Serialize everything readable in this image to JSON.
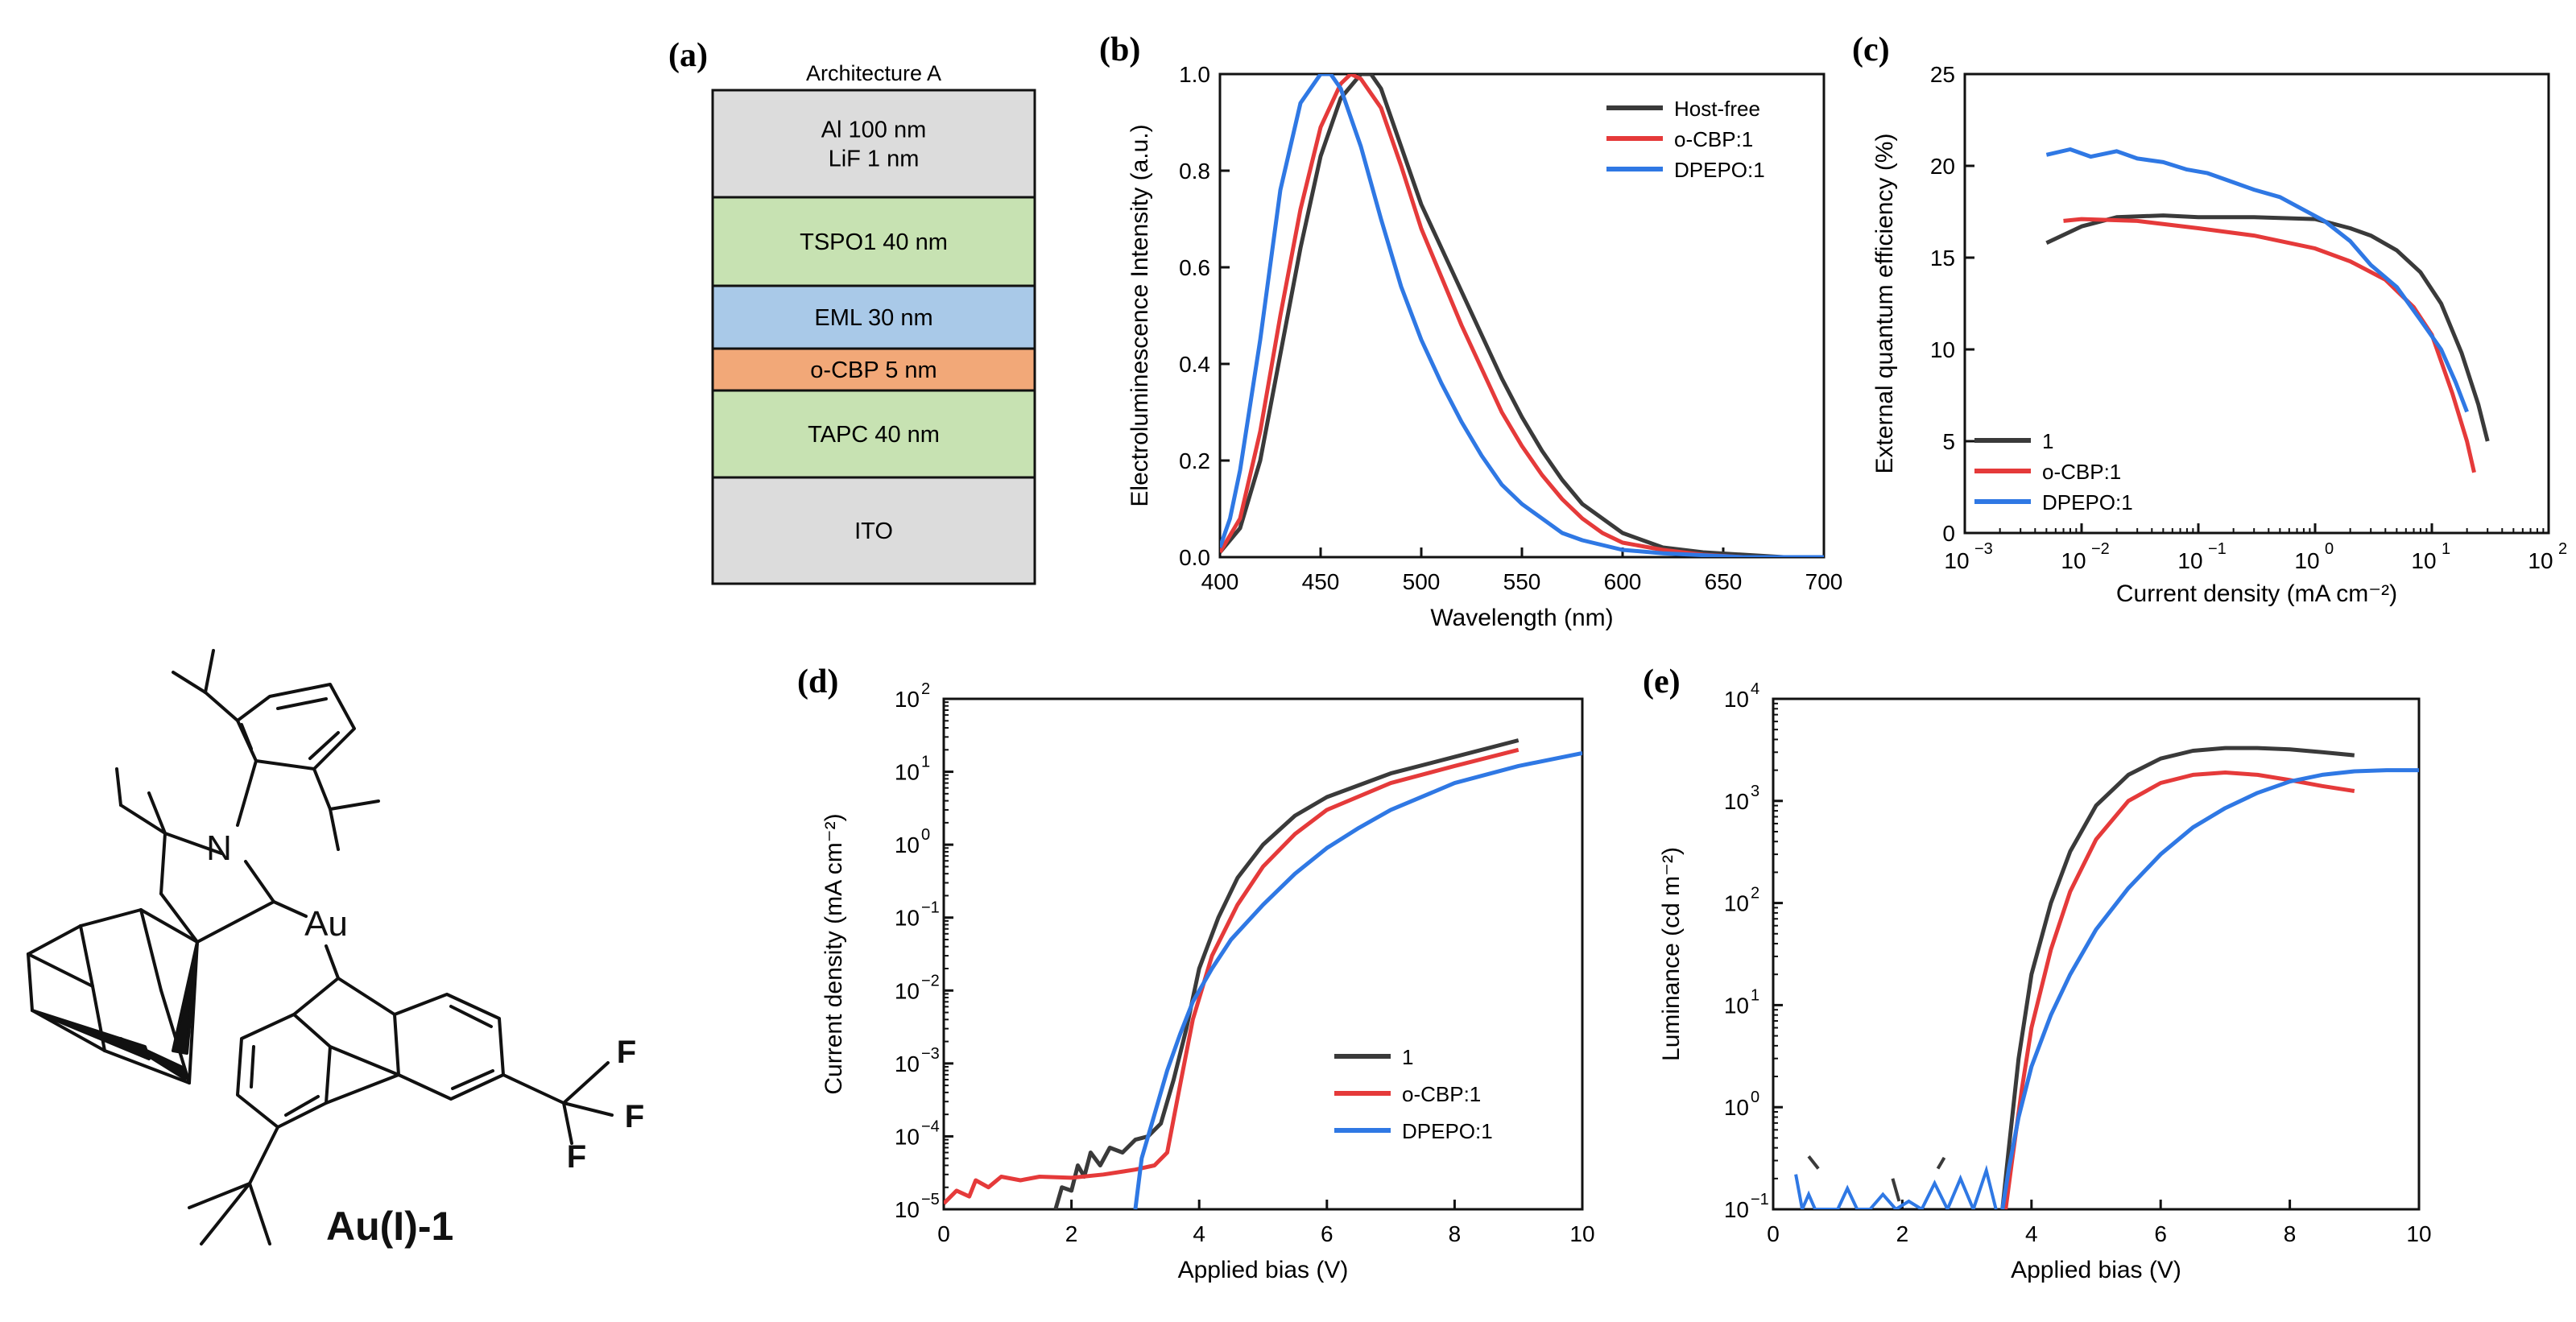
{
  "colors": {
    "black_series": "#3a3a3a",
    "red_series": "#e53a3a",
    "blue_series": "#2f78e4",
    "layer_gray": "#dcdcdc",
    "layer_green": "#c7e2b2",
    "layer_blue": "#a9c9e8",
    "layer_orange": "#f2a878"
  },
  "molecule": {
    "caption": "Au(I)-1",
    "atoms": {
      "N": "N",
      "Au": "Au",
      "F1": "F",
      "F2": "F",
      "F3": "F"
    }
  },
  "panel_a": {
    "label": "(a)",
    "title": "Architecture A",
    "layers": [
      {
        "text": "Al 100 nm\nLiF 1 nm",
        "color": "#dcdcdc"
      },
      {
        "text": "TSPO1 40 nm",
        "color": "#c7e2b2"
      },
      {
        "text": "EML 30 nm",
        "color": "#a9c9e8"
      },
      {
        "text": "o-CBP 5 nm",
        "color": "#f2a878"
      },
      {
        "text": "TAPC 40 nm",
        "color": "#c7e2b2"
      },
      {
        "text": "ITO",
        "color": "#dcdcdc"
      }
    ]
  },
  "chart_data": [
    {
      "id": "b",
      "label": "(b)",
      "type": "line",
      "xlabel": "Wavelength (nm)",
      "ylabel": "Electroluminescence Intensity (a.u.)",
      "xlim": [
        400,
        700
      ],
      "ylim": [
        0,
        1.0
      ],
      "xticks": [
        400,
        450,
        500,
        550,
        600,
        650,
        700
      ],
      "yticks": [
        0.0,
        0.2,
        0.4,
        0.6,
        0.8,
        1.0
      ],
      "legend_position": "top-right",
      "series": [
        {
          "name": "Host-free",
          "color": "#3a3a3a",
          "x": [
            400,
            410,
            420,
            430,
            440,
            450,
            460,
            470,
            475,
            480,
            490,
            500,
            510,
            520,
            530,
            540,
            550,
            560,
            570,
            580,
            590,
            600,
            620,
            640,
            660,
            680,
            700
          ],
          "y": [
            0.01,
            0.06,
            0.2,
            0.42,
            0.64,
            0.83,
            0.95,
            1.0,
            1.0,
            0.97,
            0.85,
            0.73,
            0.64,
            0.55,
            0.46,
            0.37,
            0.29,
            0.22,
            0.16,
            0.11,
            0.08,
            0.05,
            0.02,
            0.01,
            0.005,
            0.0,
            0.0
          ]
        },
        {
          "name": "o-CBP:1",
          "color": "#e53a3a",
          "x": [
            400,
            410,
            420,
            430,
            440,
            450,
            460,
            465,
            470,
            480,
            490,
            500,
            510,
            520,
            530,
            540,
            550,
            560,
            570,
            580,
            590,
            600,
            620,
            640,
            660,
            680,
            700
          ],
          "y": [
            0.01,
            0.08,
            0.26,
            0.5,
            0.72,
            0.89,
            0.98,
            1.0,
            0.99,
            0.93,
            0.81,
            0.68,
            0.58,
            0.48,
            0.39,
            0.3,
            0.23,
            0.17,
            0.12,
            0.08,
            0.05,
            0.03,
            0.015,
            0.005,
            0.0,
            0.0,
            0.0
          ]
        },
        {
          "name": "DPEPO:1",
          "color": "#2f78e4",
          "x": [
            400,
            405,
            410,
            420,
            430,
            440,
            450,
            455,
            460,
            470,
            480,
            490,
            500,
            510,
            520,
            530,
            540,
            550,
            560,
            570,
            580,
            600,
            620,
            640,
            660,
            700
          ],
          "y": [
            0.02,
            0.08,
            0.18,
            0.45,
            0.76,
            0.94,
            1.0,
            1.0,
            0.97,
            0.85,
            0.7,
            0.56,
            0.45,
            0.36,
            0.28,
            0.21,
            0.15,
            0.11,
            0.08,
            0.05,
            0.035,
            0.015,
            0.008,
            0.004,
            0.0,
            0.0
          ]
        }
      ]
    },
    {
      "id": "c",
      "label": "(c)",
      "type": "line",
      "xscale": "log",
      "xlabel": "Current density (mA cm⁻²)",
      "ylabel": "External quantum efficiency (%)",
      "xlim": [
        0.001,
        100
      ],
      "ylim": [
        0,
        25
      ],
      "xticks": [
        0.001,
        0.01,
        0.1,
        1,
        10,
        100
      ],
      "xtick_bases": [
        "10",
        "10",
        "10",
        "10",
        "10",
        "10"
      ],
      "xtick_exps": [
        "−3",
        "−2",
        "−1",
        "0",
        "1",
        "2"
      ],
      "yticks": [
        0,
        5,
        10,
        15,
        20,
        25
      ],
      "legend_position": "bottom-left",
      "series": [
        {
          "name": "1",
          "color": "#3a3a3a",
          "x": [
            0.005,
            0.01,
            0.02,
            0.05,
            0.1,
            0.3,
            1,
            2,
            3,
            5,
            8,
            12,
            18,
            25,
            30
          ],
          "y": [
            15.8,
            16.7,
            17.2,
            17.3,
            17.2,
            17.2,
            17.1,
            16.6,
            16.2,
            15.4,
            14.2,
            12.5,
            9.8,
            7.0,
            5.0
          ]
        },
        {
          "name": "o-CBP:1",
          "color": "#e53a3a",
          "x": [
            0.007,
            0.01,
            0.03,
            0.1,
            0.3,
            1,
            2,
            4,
            7,
            10,
            15,
            20,
            23
          ],
          "y": [
            17.0,
            17.1,
            17.0,
            16.6,
            16.2,
            15.5,
            14.8,
            13.8,
            12.3,
            10.8,
            7.6,
            5.0,
            3.3
          ]
        },
        {
          "name": "DPEPO:1",
          "color": "#2f78e4",
          "x": [
            0.005,
            0.008,
            0.012,
            0.02,
            0.03,
            0.05,
            0.08,
            0.12,
            0.2,
            0.3,
            0.5,
            0.8,
            1.2,
            2,
            3,
            5,
            8,
            12,
            16,
            20
          ],
          "y": [
            20.6,
            20.9,
            20.5,
            20.8,
            20.4,
            20.2,
            19.8,
            19.6,
            19.1,
            18.7,
            18.3,
            17.6,
            17.0,
            15.9,
            14.6,
            13.4,
            11.6,
            10.0,
            8.2,
            6.6
          ]
        }
      ]
    },
    {
      "id": "d",
      "label": "(d)",
      "type": "line",
      "yscale": "log",
      "xlabel": "Applied bias (V)",
      "ylabel": "Current density (mA cm⁻²)",
      "xlim": [
        0,
        10
      ],
      "ylim": [
        1e-05,
        100
      ],
      "xticks": [
        0,
        2,
        4,
        6,
        8,
        10
      ],
      "yticks": [
        1e-05,
        0.0001,
        0.001,
        0.01,
        0.1,
        1,
        10,
        100
      ],
      "ytick_bases": [
        "10",
        "10",
        "10",
        "10",
        "10",
        "10",
        "10",
        "10"
      ],
      "ytick_exps": [
        "−5",
        "−4",
        "−3",
        "−2",
        "−1",
        "0",
        "1",
        "2"
      ],
      "legend_position": "bottom-right",
      "series": [
        {
          "name": "1",
          "color": "#3a3a3a",
          "x": [
            1.75,
            1.85,
            2.0,
            2.1,
            2.2,
            2.3,
            2.45,
            2.6,
            2.8,
            3.0,
            3.2,
            3.4,
            3.6,
            3.8,
            4.0,
            4.3,
            4.6,
            5.0,
            5.5,
            6.0,
            7.0,
            8.0,
            9.0
          ],
          "y": [
            1e-05,
            2e-05,
            1.8e-05,
            4e-05,
            2.8e-05,
            6e-05,
            4e-05,
            7e-05,
            6e-05,
            9e-05,
            0.0001,
            0.00015,
            0.0006,
            0.003,
            0.02,
            0.1,
            0.35,
            1.0,
            2.5,
            4.5,
            9.5,
            16,
            27
          ]
        },
        {
          "name": "o-CBP:1",
          "color": "#e53a3a",
          "x": [
            0.0,
            0.2,
            0.4,
            0.5,
            0.7,
            0.9,
            1.2,
            1.5,
            2.0,
            2.5,
            3.0,
            3.3,
            3.5,
            3.7,
            3.9,
            4.2,
            4.6,
            5.0,
            5.5,
            6.0,
            7.0,
            8.0,
            9.0
          ],
          "y": [
            1.2e-05,
            1.8e-05,
            1.5e-05,
            2.5e-05,
            2e-05,
            2.8e-05,
            2.5e-05,
            2.8e-05,
            2.7e-05,
            3e-05,
            3.5e-05,
            4e-05,
            6e-05,
            0.0005,
            0.004,
            0.03,
            0.15,
            0.5,
            1.4,
            3.0,
            7.0,
            12,
            20
          ]
        },
        {
          "name": "DPEPO:1",
          "color": "#2f78e4",
          "x": [
            3.0,
            3.1,
            3.3,
            3.5,
            3.7,
            3.9,
            4.2,
            4.5,
            5.0,
            5.5,
            6.0,
            6.5,
            7.0,
            8.0,
            9.0,
            10.0
          ],
          "y": [
            1e-05,
            5e-05,
            0.0002,
            0.0008,
            0.0025,
            0.007,
            0.02,
            0.05,
            0.15,
            0.4,
            0.9,
            1.7,
            3.0,
            7.0,
            12,
            18
          ]
        }
      ]
    },
    {
      "id": "e",
      "label": "(e)",
      "type": "line",
      "yscale": "log",
      "xlabel": "Applied bias (V)",
      "ylabel": "Luminance (cd m⁻²)",
      "xlim": [
        0,
        10
      ],
      "ylim": [
        0.1,
        10000
      ],
      "xticks": [
        0,
        2,
        4,
        6,
        8,
        10
      ],
      "yticks": [
        0.1,
        1,
        10,
        100,
        1000,
        10000
      ],
      "ytick_bases": [
        "10",
        "10",
        "10",
        "10",
        "10",
        "10"
      ],
      "ytick_exps": [
        "−1",
        "0",
        "1",
        "2",
        "3",
        "4"
      ],
      "legend_position": "none",
      "series": [
        {
          "name": "1",
          "color": "#3a3a3a",
          "x": [
            3.55,
            3.65,
            3.8,
            4.0,
            4.3,
            4.6,
            5.0,
            5.5,
            6.0,
            6.5,
            7.0,
            7.5,
            8.0,
            8.5,
            9.0
          ],
          "y": [
            0.1,
            0.4,
            3,
            20,
            100,
            320,
            900,
            1800,
            2600,
            3100,
            3300,
            3300,
            3200,
            3000,
            2800
          ]
        },
        {
          "name": "o-CBP:1",
          "color": "#e53a3a",
          "x": [
            3.6,
            3.7,
            3.85,
            4.0,
            4.3,
            4.6,
            5.0,
            5.5,
            6.0,
            6.5,
            7.0,
            7.5,
            8.0,
            8.5,
            9.0
          ],
          "y": [
            0.1,
            0.3,
            1.5,
            6,
            35,
            130,
            420,
            1000,
            1500,
            1800,
            1900,
            1800,
            1600,
            1400,
            1250
          ]
        },
        {
          "name": "DPEPO:1",
          "color": "#2f78e4",
          "x": [
            3.55,
            3.65,
            3.8,
            4.0,
            4.3,
            4.6,
            5.0,
            5.5,
            6.0,
            6.5,
            7.0,
            7.5,
            8.0,
            8.5,
            9.0,
            9.5,
            10.0
          ],
          "y": [
            0.1,
            0.25,
            0.8,
            2.5,
            8,
            20,
            55,
            140,
            300,
            550,
            850,
            1200,
            1550,
            1800,
            1950,
            2000,
            2000
          ]
        }
      ],
      "noise_segments": [
        {
          "color": "#2f78e4",
          "x": [
            0.35,
            0.45,
            0.55,
            0.65,
            0.8,
            1.0,
            1.15,
            1.3,
            1.5,
            1.7,
            1.9,
            2.1,
            2.3,
            2.5,
            2.7,
            2.9,
            3.1,
            3.3,
            3.45
          ],
          "y": [
            0.22,
            0.1,
            0.14,
            0.1,
            0.1,
            0.1,
            0.16,
            0.1,
            0.1,
            0.14,
            0.1,
            0.12,
            0.1,
            0.18,
            0.1,
            0.2,
            0.1,
            0.24,
            0.1
          ]
        },
        {
          "color": "#3a3a3a",
          "x": [
            0.55,
            0.7
          ],
          "y": [
            0.33,
            0.25
          ]
        },
        {
          "color": "#3a3a3a",
          "x": [
            1.85,
            1.95
          ],
          "y": [
            0.2,
            0.12
          ]
        },
        {
          "color": "#3a3a3a",
          "x": [
            2.55,
            2.65
          ],
          "y": [
            0.25,
            0.32
          ]
        }
      ]
    }
  ]
}
